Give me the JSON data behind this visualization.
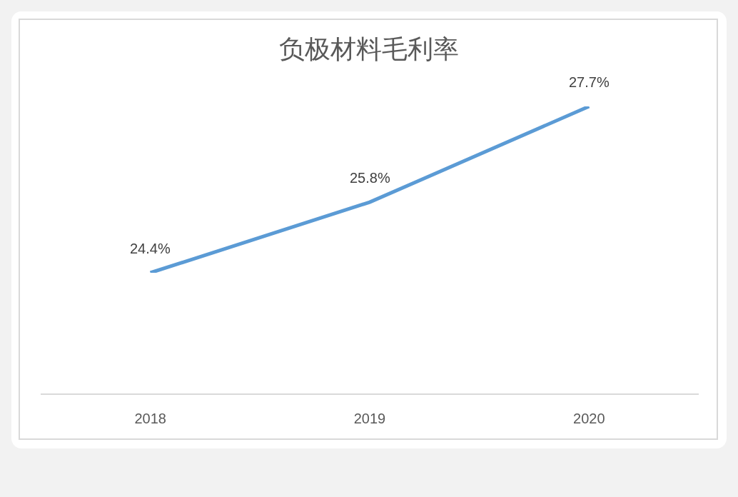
{
  "chart_data": {
    "type": "line",
    "title": "负极材料毛利率",
    "categories": [
      "2018",
      "2019",
      "2020"
    ],
    "series": [
      {
        "color": "#5b9bd5",
        "values": [
          24.4,
          25.8,
          27.7
        ],
        "value_labels": [
          "24.4%",
          "25.8%",
          "27.7%"
        ]
      }
    ],
    "tick_labels": "x",
    "grid": false,
    "marker": "none",
    "line_style": "solid"
  }
}
